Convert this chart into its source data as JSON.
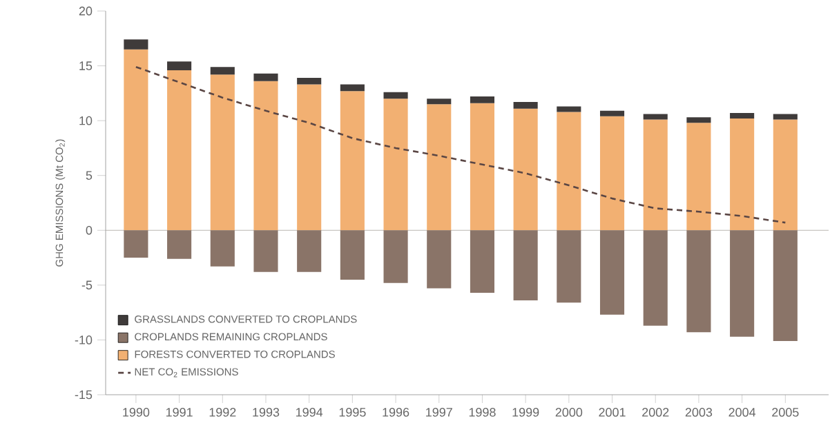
{
  "chart_data": {
    "type": "bar",
    "stacked": true,
    "ylabel": "GHG EMISSIONS (Mt CO$_{2}$)",
    "categories": [
      "1990",
      "1991",
      "1992",
      "1993",
      "1994",
      "1995",
      "1996",
      "1997",
      "1998",
      "1999",
      "2000",
      "2001",
      "2002",
      "2003",
      "2004",
      "2005"
    ],
    "series": [
      {
        "name": "FORESTS CONVERTED TO CROPLANDS",
        "color": "#f2b072",
        "values": [
          16.5,
          14.6,
          14.2,
          13.6,
          13.3,
          12.7,
          12.0,
          11.5,
          11.6,
          11.1,
          10.8,
          10.4,
          10.1,
          9.8,
          10.2,
          10.1
        ]
      },
      {
        "name": "CROPLANDS REMAINING CROPLANDS",
        "color": "#8a7468",
        "values": [
          -2.5,
          -2.6,
          -3.3,
          -3.8,
          -3.8,
          -4.5,
          -4.8,
          -5.3,
          -5.7,
          -6.4,
          -6.6,
          -7.7,
          -8.7,
          -9.3,
          -9.7,
          -10.1
        ]
      },
      {
        "name": "GRASSLANDS CONVERTED TO CROPLANDS",
        "color": "#3f3b3a",
        "values": [
          0.9,
          0.8,
          0.7,
          0.7,
          0.6,
          0.6,
          0.6,
          0.5,
          0.6,
          0.6,
          0.5,
          0.5,
          0.5,
          0.5,
          0.5,
          0.5
        ]
      },
      {
        "name": "NET CO$_{2}$ EMISSIONS",
        "type": "line",
        "color": "#5a4644",
        "line_style": "dashed",
        "values": [
          14.9,
          13.5,
          12.1,
          10.9,
          9.8,
          8.4,
          7.5,
          6.8,
          6.0,
          5.2,
          4.1,
          2.9,
          2.0,
          1.7,
          1.3,
          0.7
        ]
      }
    ],
    "ylim": [
      -15,
      20
    ],
    "yticks": [
      -15,
      -10,
      -5,
      0,
      5,
      10,
      15,
      20
    ],
    "ref_lines": [
      {
        "axis": "y",
        "value": 0,
        "color": "#a8a29c"
      }
    ],
    "legend": "bottom left"
  }
}
